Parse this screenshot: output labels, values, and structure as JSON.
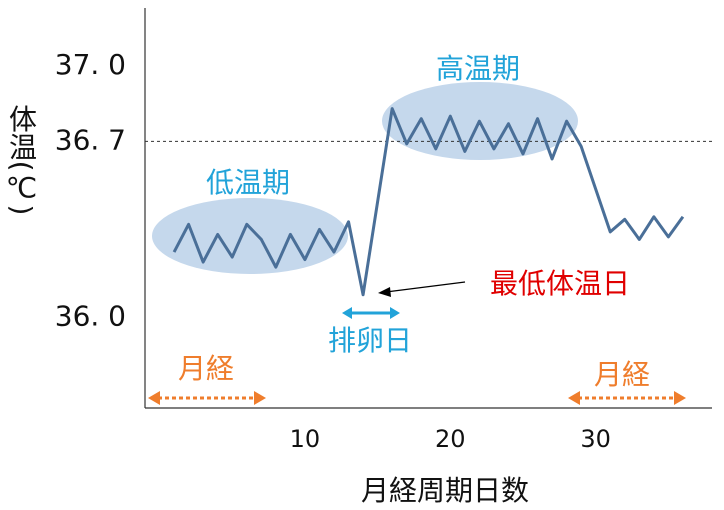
{
  "chart_data": {
    "type": "line",
    "x": [
      1,
      2,
      3,
      4,
      5,
      6,
      7,
      8,
      9,
      10,
      11,
      12,
      13,
      14,
      16,
      17,
      18,
      19,
      20,
      21,
      22,
      23,
      24,
      25,
      26,
      27,
      28,
      29,
      31,
      32,
      33,
      34,
      35,
      36
    ],
    "series": [
      {
        "name": "体温",
        "color": "#4a6f98",
        "values": [
          36.26,
          36.37,
          36.22,
          36.33,
          36.24,
          36.37,
          36.31,
          36.2,
          36.33,
          36.23,
          36.35,
          36.26,
          36.38,
          36.09,
          36.83,
          36.69,
          36.79,
          36.67,
          36.8,
          36.66,
          36.78,
          36.67,
          36.77,
          36.65,
          36.79,
          36.63,
          36.78,
          36.68,
          36.34,
          36.39,
          36.31,
          36.4,
          36.32,
          36.4
        ]
      }
    ],
    "xlim": [
      -1,
      38
    ],
    "xticks": [
      10,
      20,
      30
    ],
    "ylim": [
      35.64,
      37.23
    ],
    "yticks": [
      {
        "value": 36.0,
        "label": "36. 0"
      },
      {
        "value": 36.7,
        "label": "36. 7"
      },
      {
        "value": 37.0,
        "label": "37. 0"
      }
    ],
    "xlabel": "月経周期日数",
    "ylabel": "体温(℃)",
    "annotations": [
      "低温期",
      "高温期",
      "最低体温日",
      "排卵日",
      "月経",
      "月経"
    ]
  }
}
